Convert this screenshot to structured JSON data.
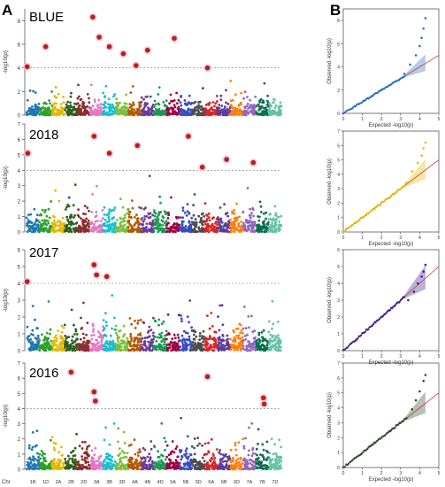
{
  "panel_labels": [
    "A",
    "B"
  ],
  "chr_axis_label": "Chr",
  "chromosomes": [
    "1B",
    "1D",
    "2A",
    "2B",
    "2D",
    "3A",
    "3B",
    "3D",
    "4A",
    "4B",
    "4D",
    "5A",
    "5B",
    "5D",
    "6A",
    "6B",
    "6D",
    "7A",
    "7B",
    "7D"
  ],
  "colors": [
    "#1f77b4",
    "#2ca02c",
    "#e6b800",
    "#2f5d1f",
    "#8c2d2d",
    "#e377c2",
    "#17becf",
    "#7fbf3f",
    "#b35806",
    "#6a3d9a",
    "#1a9850",
    "#9e0142",
    "#3b4cc0",
    "#4d4d4d",
    "#d62728",
    "#5e3c99",
    "#ff7f0e",
    "#9467bd",
    "#0b6e4f",
    "#66c2a5"
  ],
  "highlight_color": "#b22222",
  "chart_data": [
    {
      "type": "scatter",
      "name": "manhattan",
      "title": "BLUE",
      "ylabel": "-log10(p)",
      "ylim": [
        0,
        9
      ],
      "yticks": [
        0,
        2,
        4,
        6,
        8
      ],
      "threshold": 4,
      "significant": [
        {
          "chr": "1B",
          "pos": 0.05,
          "y": 4.1
        },
        {
          "chr": "1D",
          "pos": 0.5,
          "y": 5.8
        },
        {
          "chr": "3A",
          "pos": 0.2,
          "y": 8.3
        },
        {
          "chr": "3A",
          "pos": 0.7,
          "y": 6.6
        },
        {
          "chr": "3B",
          "pos": 0.5,
          "y": 5.8
        },
        {
          "chr": "3D",
          "pos": 0.6,
          "y": 5.2
        },
        {
          "chr": "4A",
          "pos": 0.6,
          "y": 4.2
        },
        {
          "chr": "4B",
          "pos": 0.5,
          "y": 5.5
        },
        {
          "chr": "5A",
          "pos": 0.6,
          "y": 6.5
        },
        {
          "chr": "6A",
          "pos": 0.2,
          "y": 4.0
        }
      ]
    },
    {
      "type": "scatter",
      "name": "manhattan",
      "title": "2018",
      "ylabel": "-log10(p)",
      "ylim": [
        0,
        7
      ],
      "yticks": [
        0,
        1,
        2,
        3,
        4,
        5,
        6,
        7
      ],
      "threshold": 4,
      "significant": [
        {
          "chr": "1B",
          "pos": 0.1,
          "y": 5.1
        },
        {
          "chr": "3A",
          "pos": 0.3,
          "y": 6.2
        },
        {
          "chr": "3B",
          "pos": 0.5,
          "y": 5.1
        },
        {
          "chr": "4A",
          "pos": 0.7,
          "y": 5.6
        },
        {
          "chr": "5B",
          "pos": 0.7,
          "y": 6.2
        },
        {
          "chr": "5D",
          "pos": 0.8,
          "y": 4.2
        },
        {
          "chr": "6B",
          "pos": 0.7,
          "y": 4.7
        },
        {
          "chr": "7A",
          "pos": 0.8,
          "y": 4.5
        }
      ]
    },
    {
      "type": "scatter",
      "name": "manhattan",
      "title": "2017",
      "ylabel": "-log10(p)",
      "ylim": [
        0,
        6
      ],
      "yticks": [
        0,
        1,
        2,
        3,
        4,
        5,
        6
      ],
      "threshold": 4,
      "significant": [
        {
          "chr": "1B",
          "pos": 0.05,
          "y": 4.1
        },
        {
          "chr": "3A",
          "pos": 0.3,
          "y": 5.1
        },
        {
          "chr": "3A",
          "pos": 0.5,
          "y": 4.5
        },
        {
          "chr": "3B",
          "pos": 0.3,
          "y": 4.4
        }
      ]
    },
    {
      "type": "scatter",
      "name": "manhattan",
      "title": "2016",
      "ylabel": "-log10(p)",
      "ylim": [
        0,
        7
      ],
      "yticks": [
        0,
        1,
        2,
        3,
        4,
        5,
        6,
        7
      ],
      "threshold": 4,
      "significant": [
        {
          "chr": "2B",
          "pos": 0.5,
          "y": 6.4
        },
        {
          "chr": "3A",
          "pos": 0.3,
          "y": 5.1
        },
        {
          "chr": "3A",
          "pos": 0.4,
          "y": 4.5
        },
        {
          "chr": "6A",
          "pos": 0.2,
          "y": 6.1
        },
        {
          "chr": "7B",
          "pos": 0.6,
          "y": 4.7
        },
        {
          "chr": "7B",
          "pos": 0.65,
          "y": 4.3
        }
      ]
    },
    {
      "type": "scatter",
      "name": "qq",
      "xlabel": "Expected -log10(p)",
      "ylabel": "Observed -log10(p)",
      "xlim": [
        0,
        5
      ],
      "ylim": [
        0,
        9
      ],
      "xticks": [
        0,
        1,
        2,
        3,
        4,
        5
      ],
      "yticks": [
        0,
        2,
        4,
        6,
        8
      ],
      "color": "#2b6cc4",
      "tail": [
        [
          3.2,
          3.4
        ],
        [
          3.5,
          4.2
        ],
        [
          3.8,
          5.0
        ],
        [
          4.0,
          5.8
        ],
        [
          4.1,
          6.5
        ],
        [
          4.2,
          7.3
        ],
        [
          4.3,
          8.2
        ]
      ]
    },
    {
      "type": "scatter",
      "name": "qq",
      "xlabel": "Expected -log10(p)",
      "ylabel": "Observed -log10(p)",
      "xlim": [
        0,
        5
      ],
      "ylim": [
        0,
        7
      ],
      "xticks": [
        0,
        1,
        2,
        3,
        4,
        5
      ],
      "yticks": [
        0,
        1,
        2,
        3,
        4,
        5,
        6,
        7
      ],
      "color": "#e6b800",
      "tail": [
        [
          3.3,
          3.4
        ],
        [
          3.6,
          4.2
        ],
        [
          3.9,
          4.8
        ],
        [
          4.1,
          5.3
        ],
        [
          4.2,
          5.8
        ],
        [
          4.3,
          6.2
        ]
      ]
    },
    {
      "type": "scatter",
      "name": "qq",
      "xlabel": "Expected -log10(p)",
      "ylabel": "Observed -log10(p)",
      "xlim": [
        0,
        5
      ],
      "ylim": [
        0,
        6
      ],
      "xticks": [
        0,
        1,
        2,
        3,
        4,
        5
      ],
      "yticks": [
        0,
        1,
        2,
        3,
        4,
        5,
        6
      ],
      "color": "#3f1f8f",
      "tail": [
        [
          3.4,
          3.0
        ],
        [
          3.7,
          3.5
        ],
        [
          3.9,
          4.0
        ],
        [
          4.1,
          4.4
        ],
        [
          4.2,
          4.7
        ],
        [
          4.3,
          5.1
        ]
      ]
    },
    {
      "type": "scatter",
      "name": "qq",
      "xlabel": "Expected -log10(p)",
      "ylabel": "Observed -log10(p)",
      "xlim": [
        0,
        5
      ],
      "ylim": [
        0,
        7
      ],
      "xticks": [
        0,
        1,
        2,
        3,
        4,
        5
      ],
      "yticks": [
        0,
        1,
        2,
        3,
        4,
        5,
        6,
        7
      ],
      "color": "#2d4a2d",
      "tail": [
        [
          3.3,
          3.3
        ],
        [
          3.6,
          3.9
        ],
        [
          3.8,
          4.5
        ],
        [
          4.0,
          5.1
        ],
        [
          4.2,
          5.8
        ],
        [
          4.3,
          6.2
        ]
      ]
    }
  ]
}
